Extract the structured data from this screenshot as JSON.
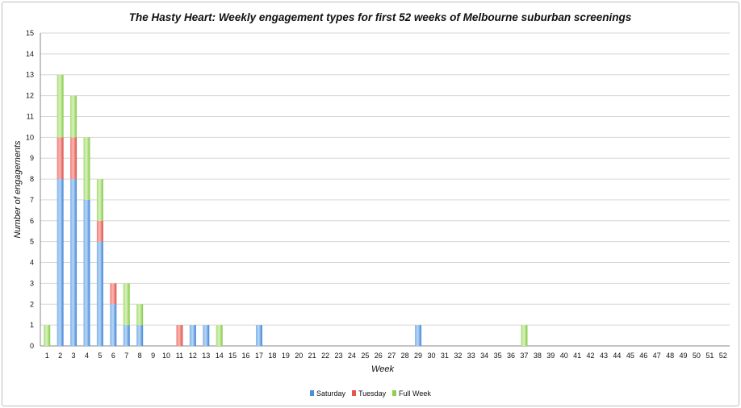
{
  "chart_data": {
    "type": "bar",
    "stacked": true,
    "title": "The Hasty Heart: Weekly engagement types for first 52 weeks of Melbourne suburban screenings",
    "xlabel": "Week",
    "ylabel": "Number of engagements",
    "ylim": [
      0,
      15
    ],
    "yticks": [
      "0",
      "1",
      "2",
      "3",
      "4",
      "5",
      "6",
      "7",
      "8",
      "9",
      "10",
      "11",
      "12",
      "13",
      "14",
      "15"
    ],
    "categories": [
      "1",
      "2",
      "3",
      "4",
      "5",
      "6",
      "7",
      "8",
      "9",
      "10",
      "11",
      "12",
      "13",
      "14",
      "15",
      "16",
      "17",
      "18",
      "19",
      "20",
      "21",
      "22",
      "23",
      "24",
      "25",
      "26",
      "27",
      "28",
      "29",
      "30",
      "31",
      "32",
      "33",
      "34",
      "35",
      "36",
      "37",
      "38",
      "39",
      "40",
      "41",
      "42",
      "43",
      "44",
      "45",
      "46",
      "47",
      "48",
      "49",
      "50",
      "51",
      "52"
    ],
    "series": [
      {
        "name": "Saturday",
        "color": "#4a90d9",
        "values": [
          0,
          8,
          8,
          7,
          5,
          2,
          1,
          1,
          0,
          0,
          0,
          1,
          1,
          0,
          0,
          0,
          1,
          0,
          0,
          0,
          0,
          0,
          0,
          0,
          0,
          0,
          0,
          0,
          1,
          0,
          0,
          0,
          0,
          0,
          0,
          0,
          0,
          0,
          0,
          0,
          0,
          0,
          0,
          0,
          0,
          0,
          0,
          0,
          0,
          0,
          0,
          0
        ]
      },
      {
        "name": "Tuesday",
        "color": "#e8534f",
        "values": [
          0,
          2,
          2,
          0,
          1,
          1,
          0,
          0,
          0,
          0,
          1,
          0,
          0,
          0,
          0,
          0,
          0,
          0,
          0,
          0,
          0,
          0,
          0,
          0,
          0,
          0,
          0,
          0,
          0,
          0,
          0,
          0,
          0,
          0,
          0,
          0,
          0,
          0,
          0,
          0,
          0,
          0,
          0,
          0,
          0,
          0,
          0,
          0,
          0,
          0,
          0,
          0
        ]
      },
      {
        "name": "Full Week",
        "color": "#8fd14f",
        "values": [
          1,
          3,
          2,
          3,
          2,
          0,
          2,
          1,
          0,
          0,
          0,
          0,
          0,
          1,
          0,
          0,
          0,
          0,
          0,
          0,
          0,
          0,
          0,
          0,
          0,
          0,
          0,
          0,
          0,
          0,
          0,
          0,
          0,
          0,
          0,
          0,
          1,
          0,
          0,
          0,
          0,
          0,
          0,
          0,
          0,
          0,
          0,
          0,
          0,
          0,
          0,
          0
        ]
      }
    ],
    "grid": true,
    "legend": "bottom-center"
  }
}
